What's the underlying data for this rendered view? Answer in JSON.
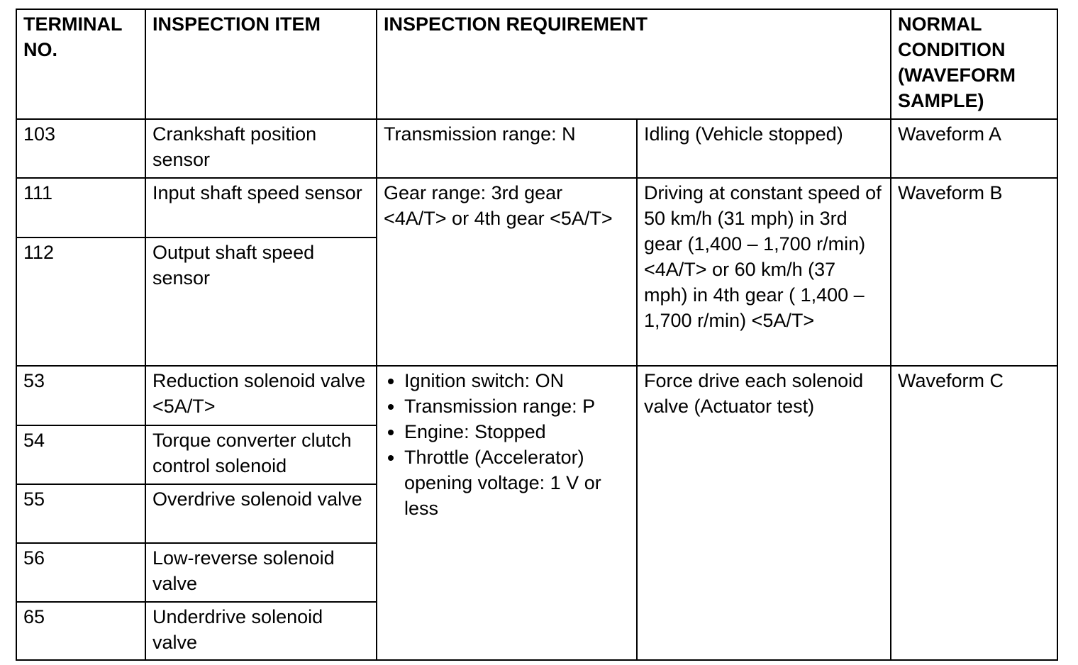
{
  "header": {
    "terminal": "TERMINAL NO.",
    "item": "INSPECTION ITEM",
    "requirement": "INSPECTION REQUIREMENT",
    "normal": "NORMAL CONDITION (WAVEFORM SAMPLE)"
  },
  "rows": [
    {
      "terminal": "103",
      "item": "Crankshaft position sensor",
      "req1": "Transmission range: N",
      "req2": "Idling (Vehicle stopped)",
      "normal": "Waveform A"
    },
    {
      "terminal": "111",
      "item": "Input shaft speed sensor",
      "req1": "Gear range: 3rd gear <4A/T> or 4th gear <5A/T>",
      "req2": "Driving at constant speed of 50 km/h (31 mph) in 3rd gear (1,400 – 1,700 r/min) <4A/T> or 60 km/h (37 mph) in 4th gear ( 1,400 – 1,700 r/min) <5A/T>",
      "normal": "Waveform B"
    },
    {
      "terminal": "112",
      "item": "Output shaft speed sensor"
    },
    {
      "terminal": "53",
      "item": "Reduction solenoid valve <5A/T>",
      "req1_bullets": [
        "Ignition switch: ON",
        "Transmission range: P",
        "Engine: Stopped",
        "Throttle (Accelerator) opening voltage: 1 V or less"
      ],
      "req2": "Force drive each solenoid valve (Actuator test)",
      "normal": "Waveform C"
    },
    {
      "terminal": "54",
      "item": "Torque converter clutch control solenoid"
    },
    {
      "terminal": "55",
      "item": "Overdrive solenoid valve"
    },
    {
      "terminal": "56",
      "item": "Low-reverse solenoid valve"
    },
    {
      "terminal": "65",
      "item": "Underdrive solenoid valve"
    }
  ]
}
